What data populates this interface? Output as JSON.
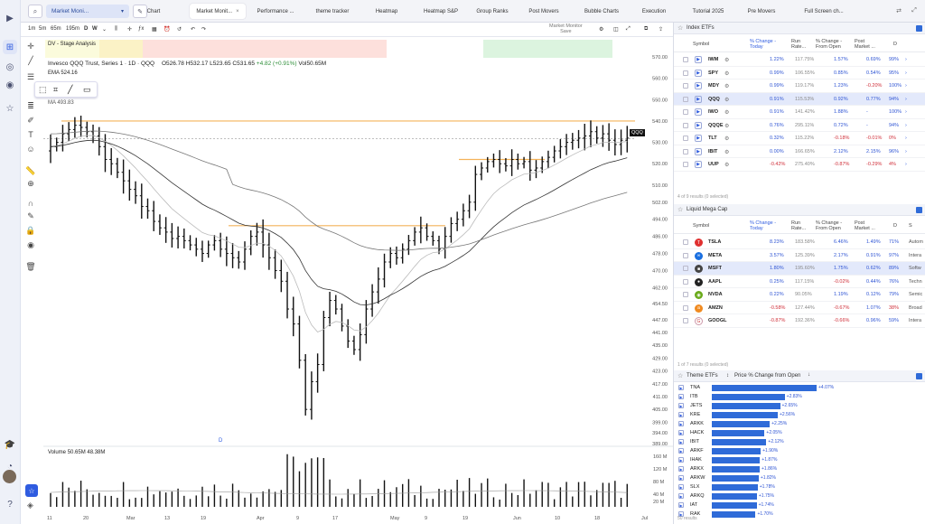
{
  "workspace": {
    "name": "Market Moni...",
    "search_icon": "search-icon"
  },
  "tabs": [
    {
      "label": "Chart",
      "active": false
    },
    {
      "label": "Market Monit...",
      "active": true
    },
    {
      "label": "Performance ...",
      "active": false
    },
    {
      "label": "theme tracker",
      "active": false
    },
    {
      "label": "Heatmap",
      "active": false
    },
    {
      "label": "Heatmap S&P",
      "active": false
    },
    {
      "label": "Group Ranks",
      "active": false
    },
    {
      "label": "Post Movers",
      "active": false
    },
    {
      "label": "Bubble Charts",
      "active": false
    },
    {
      "label": "Execution",
      "active": false
    },
    {
      "label": "Tutorial 2025",
      "active": false
    },
    {
      "label": "Pre Movers",
      "active": false
    },
    {
      "label": "Full Screen ch...",
      "active": false
    }
  ],
  "timeframes": [
    "1m",
    "5m",
    "65m",
    "195m",
    "D",
    "W"
  ],
  "market_monitor": {
    "label": "Market Monitor",
    "sub": "Save"
  },
  "stage_analysis": {
    "label": "DV - Stage Analysis"
  },
  "chart_info": {
    "title": "Invesco QQQ Trust, Series 1 · 1D · QQQ",
    "open": "O526.78",
    "high": "H532.17",
    "low": "L523.65",
    "close": "C531.65",
    "change": "+4.82 (+0.91%)",
    "volume": "Vol50.65M",
    "ema": "EMA 524.16",
    "ma": "MA 493.83",
    "last_label": "QQQ",
    "volume_label": "Volume",
    "volume_val1": "50.65M",
    "volume_val2": "48.38M",
    "d_marker": "D"
  },
  "chart_data": {
    "type": "ohlc",
    "y_axis_ticks": [
      "570.00",
      "560.00",
      "550.00",
      "540.00",
      "530.00",
      "520.00",
      "510.00",
      "502.00",
      "494.00",
      "486.00",
      "478.00",
      "470.00",
      "462.00",
      "454.50",
      "447.00",
      "441.00",
      "435.00",
      "429.00",
      "423.00",
      "417.00",
      "411.00",
      "405.00",
      "399.00",
      "394.00",
      "389.00"
    ],
    "volume_ticks": [
      "160 M",
      "120 M",
      "80 M",
      "40 M",
      "20 M"
    ],
    "x_axis_labels": [
      "11",
      "20",
      "Mar",
      "13",
      "19",
      "Apr",
      "9",
      "17",
      "May",
      "9",
      "19",
      "Jun",
      "10",
      "18",
      "Jul"
    ],
    "resistance_lines": [
      540,
      491,
      522
    ],
    "ema_last": 524.16,
    "ma_last": 493.83,
    "last_close": 531.65
  },
  "index_etfs": {
    "title": "Index ETFs",
    "columns": [
      "Symbol",
      "% Change - Today",
      "Run Rate...",
      "% Change - From Open",
      "Post Market ...",
      "D"
    ],
    "rows": [
      {
        "sym": "IWM",
        "chg": "1.22%",
        "run": "117.75%",
        "open": "1.57%",
        "post": "0.69%",
        "d": "99%",
        "postneg": false,
        "dclass": "pct99"
      },
      {
        "sym": "SPY",
        "chg": "0.99%",
        "run": "106.55%",
        "open": "0.85%",
        "post": "0.54%",
        "d": "95%",
        "postneg": false,
        "dclass": "pct99"
      },
      {
        "sym": "MDY",
        "chg": "0.99%",
        "run": "119.17%",
        "open": "1.23%",
        "post": "-0.20%",
        "d": "100%",
        "postneg": true,
        "dclass": "pct99"
      },
      {
        "sym": "QQQ",
        "chg": "0.91%",
        "run": "115.53%",
        "open": "0.92%",
        "post": "0.77%",
        "d": "94%",
        "postneg": false,
        "dclass": "pct99",
        "sel": true
      },
      {
        "sym": "IWO",
        "chg": "0.91%",
        "run": "141.42%",
        "open": "1.88%",
        "post": "-",
        "d": "100%",
        "postneg": false,
        "dclass": "pct99"
      },
      {
        "sym": "QQQE",
        "chg": "0.76%",
        "run": "295.11%",
        "open": "0.72%",
        "post": "-",
        "d": "94%",
        "postneg": false,
        "dclass": "pct99"
      },
      {
        "sym": "TLT",
        "chg": "0.32%",
        "run": "115.22%",
        "open": "-0.18%",
        "post": "-0.01%",
        "d": "0%",
        "postneg": true,
        "dclass": "pctlow"
      },
      {
        "sym": "IBIT",
        "chg": "0.00%",
        "run": "166.65%",
        "open": "2.12%",
        "post": "2.15%",
        "d": "96%",
        "postneg": false,
        "dclass": "pct99"
      },
      {
        "sym": "UUP",
        "chg": "-0.42%",
        "run": "275.40%",
        "open": "-0.87%",
        "post": "-0.29%",
        "d": "4%",
        "postneg": true,
        "dclass": "pctlow"
      }
    ],
    "results": "4 of 9 results (0 selected)"
  },
  "mega_cap": {
    "title": "Liquid Mega Cap",
    "columns": [
      "Symbol",
      "% Change - Today",
      "Run Rate...",
      "% Change - From Open",
      "Post Market ...",
      "D",
      "S"
    ],
    "rows": [
      {
        "sym": "TSLA",
        "chg": "8.23%",
        "run": "183.58%",
        "open": "6.46%",
        "post": "1.49%",
        "d": "71%",
        "sector": "Autom",
        "logo": "#e03030",
        "logoChar": "T"
      },
      {
        "sym": "META",
        "chg": "3.57%",
        "run": "125.39%",
        "open": "2.17%",
        "post": "0.91%",
        "d": "97%",
        "sector": "Intera",
        "logo": "#1a6fe0",
        "logoChar": "∞"
      },
      {
        "sym": "MSFT",
        "chg": "1.80%",
        "run": "195.60%",
        "open": "1.75%",
        "post": "0.62%",
        "d": "89%",
        "sector": "Softw",
        "logo": "#444",
        "logoChar": "■",
        "sel": true
      },
      {
        "sym": "AAPL",
        "chg": "0.25%",
        "run": "117.15%",
        "open": "-0.02%",
        "post": "0.44%",
        "d": "76%",
        "sector": "Techn",
        "logo": "#222",
        "logoChar": "●"
      },
      {
        "sym": "NVDA",
        "chg": "0.22%",
        "run": "90.05%",
        "open": "1.19%",
        "post": "0.12%",
        "d": "79%",
        "sector": "Semic",
        "logo": "#6aaa1a",
        "logoChar": "◉"
      },
      {
        "sym": "AMZN",
        "chg": "-0.58%",
        "run": "127.44%",
        "open": "-0.67%",
        "post": "1.07%",
        "d": "38%",
        "sector": "Broad",
        "logo": "#f08a20",
        "logoChar": "a"
      },
      {
        "sym": "GOOGL",
        "chg": "-0.87%",
        "run": "192.36%",
        "open": "-0.66%",
        "post": "0.96%",
        "d": "59%",
        "sector": "Intera",
        "logo": "#fff",
        "logoChar": "G"
      }
    ],
    "results": "1 of 7 results (0 selected)"
  },
  "theme_etfs": {
    "title": "Theme ETFs",
    "sort": "Price % Change from Open",
    "rows": [
      {
        "sym": "TNA",
        "val": 4.07
      },
      {
        "sym": "ITB",
        "val": 2.83
      },
      {
        "sym": "JETS",
        "val": 2.65
      },
      {
        "sym": "KRE",
        "val": 2.56
      },
      {
        "sym": "ARKK",
        "val": 2.25
      },
      {
        "sym": "HACK",
        "val": 2.05
      },
      {
        "sym": "IBIT",
        "val": 2.12
      },
      {
        "sym": "ARKF",
        "val": 1.9
      },
      {
        "sym": "IHAK",
        "val": 1.87
      },
      {
        "sym": "ARKX",
        "val": 1.86
      },
      {
        "sym": "ARKW",
        "val": 1.82
      },
      {
        "sym": "SLX",
        "val": 1.78
      },
      {
        "sym": "ARKQ",
        "val": 1.75
      },
      {
        "sym": "IAT",
        "val": 1.74
      },
      {
        "sym": "RAK",
        "val": 1.7
      }
    ],
    "val_labels": [
      "+4.07%",
      "+2.83%",
      "+2.65%",
      "+2.56%",
      "+2.25%",
      "+2.05%",
      "+2.12%",
      "+1.90%",
      "+1.87%",
      "+1.86%",
      "+1.82%",
      "+1.78%",
      "+1.75%",
      "+1.74%",
      "+1.70%"
    ],
    "results": "50 results"
  }
}
